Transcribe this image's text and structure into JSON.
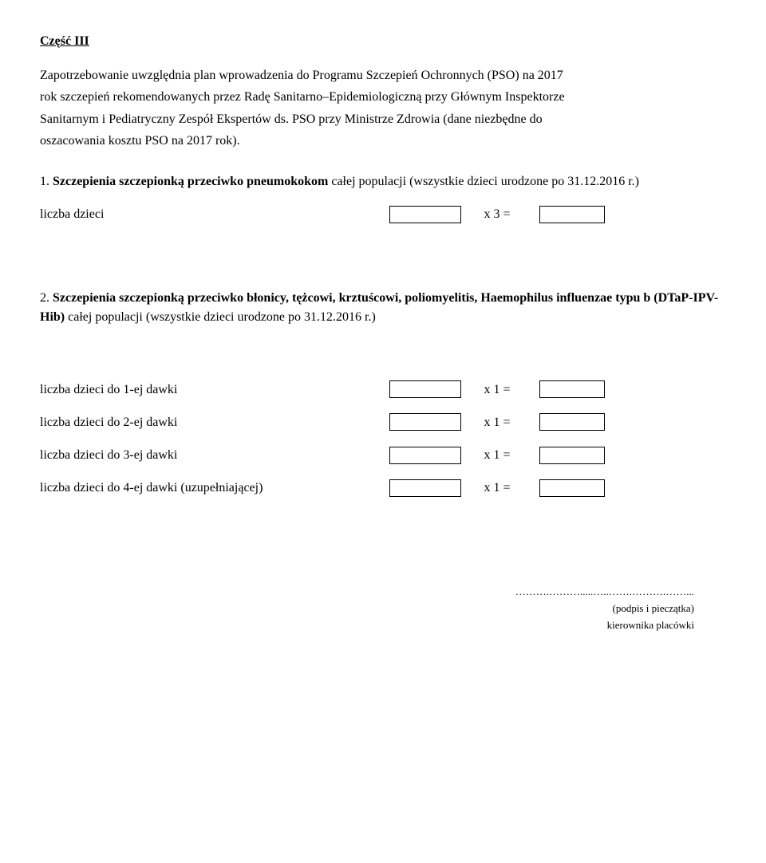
{
  "title": "Część III",
  "intro": {
    "p1": "Zapotrzebowanie uwzględnia plan wprowadzenia do Programu Szczepień Ochronnych (PSO) na 2017",
    "p2": "rok szczepień rekomendowanych przez Radę Sanitarno–Epidemiologiczną przy Głównym Inspektorze",
    "p3": "Sanitarnym i Pediatryczny Zespół Ekspertów ds. PSO przy Ministrze Zdrowia  (dane niezbędne do",
    "p4": "oszacowania kosztu PSO na 2017 rok)."
  },
  "section1": {
    "lead": "1. ",
    "bold": "Szczepienia szczepionką przeciwko pneumokokom",
    "tail": " całej populacji (wszystkie dzieci urodzone po 31.12.2016 r.)",
    "row_label": "liczba dzieci",
    "mult": "x 3 ="
  },
  "section2": {
    "lead": "2. ",
    "bold": "Szczepienia szczepionką przeciwko błonicy, tężcowi, krztuścowi,  poliomyelitis, Haemophilus influenzae typu b (DTaP-IPV-Hib)",
    "tail": " całej populacji (wszystkie dzieci urodzone po 31.12.2016 r.)",
    "rows": [
      {
        "label": "liczba dzieci do 1-ej dawki",
        "mult": "x 1 ="
      },
      {
        "label": "liczba dzieci do 2-ej dawki",
        "mult": "x 1 ="
      },
      {
        "label": "liczba dzieci do 3-ej dawki",
        "mult": "x 1 ="
      },
      {
        "label": "liczba dzieci do 4-ej dawki (uzupełniającej)",
        "mult": "x 1 ="
      }
    ]
  },
  "signature": {
    "dots": "……….……….....…..…….……….……...",
    "line1": "(podpis i pieczątka)",
    "line2": "kierownika placówki"
  }
}
